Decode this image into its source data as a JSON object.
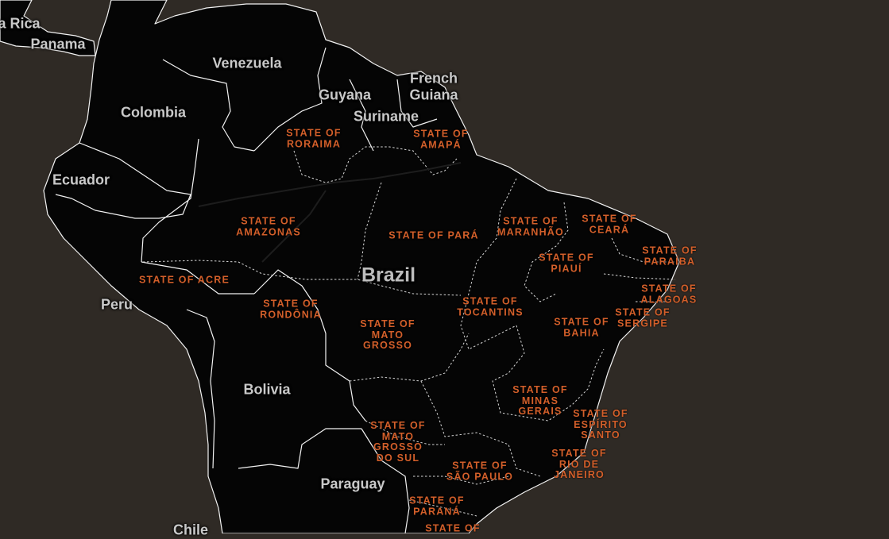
{
  "map": {
    "countries": {
      "costa_rica": "a Rica",
      "panama": "Panama",
      "venezuela": "Venezuela",
      "colombia": "Colombia",
      "guyana": "Guyana",
      "suriname": "Suriname",
      "french_guiana_1": "French",
      "french_guiana_2": "Guiana",
      "ecuador": "Ecuador",
      "peru": "Peru",
      "brazil": "Brazil",
      "bolivia": "Bolivia",
      "paraguay": "Paraguay",
      "chile": "Chile"
    },
    "states": {
      "roraima": [
        "STATE OF",
        "RORAIMA"
      ],
      "amapa": [
        "STATE OF",
        "AMAPÁ"
      ],
      "amazonas": [
        "STATE OF",
        "AMAZONAS"
      ],
      "para": [
        "STATE OF PARÁ"
      ],
      "maranhao": [
        "STATE OF",
        "MARANHÃO"
      ],
      "ceara": [
        "STATE OF",
        "CEARÁ"
      ],
      "piaui": [
        "STATE OF",
        "PIAUÍ"
      ],
      "paraiba": [
        "STATE OF",
        "PARAÍBA"
      ],
      "acre": [
        "STATE OF ACRE"
      ],
      "rondonia": [
        "STATE OF",
        "RONDÔNIA"
      ],
      "tocantins": [
        "STATE OF",
        "TOCANTINS"
      ],
      "alagoas": [
        "STATE OF",
        "ALAGOAS"
      ],
      "sergipe": [
        "STATE OF",
        "SERGIPE"
      ],
      "bahia": [
        "STATE OF",
        "BAHIA"
      ],
      "mato_grosso": [
        "STATE OF",
        "MATO",
        "GROSSO"
      ],
      "minas_gerais": [
        "STATE OF",
        "MINAS",
        "GERAIS"
      ],
      "espirito_santo": [
        "STATE OF",
        "ESPÍRITO",
        "SANTO"
      ],
      "mato_grosso_do_sul": [
        "STATE OF",
        "MATO",
        "GROSSO",
        "DO SUL"
      ],
      "sao_paulo": [
        "STATE OF",
        "SÃO PAULO"
      ],
      "rio_de_janeiro": [
        "STATE OF",
        "RIO DE",
        "JANEIRO"
      ],
      "parana": [
        "STATE OF",
        "PARANÁ"
      ],
      "santa_catarina_partial": [
        "STATE OF"
      ]
    },
    "colors": {
      "water": "#2f2a25",
      "land": "#050505",
      "country_label": "#c9c9c9",
      "state_label": "#d35f2a"
    }
  }
}
